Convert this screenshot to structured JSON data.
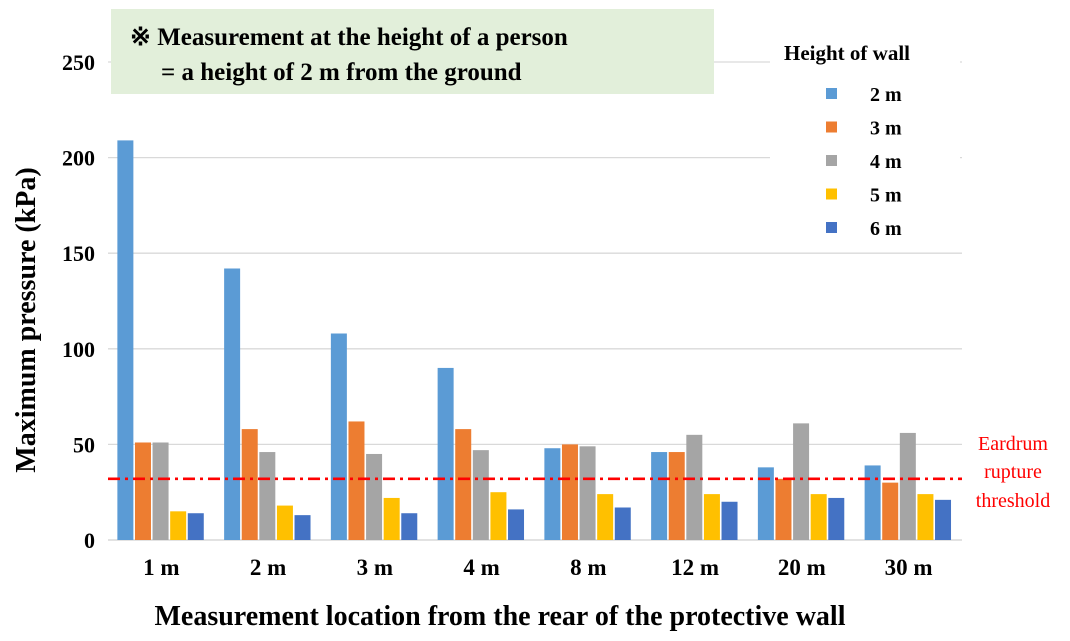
{
  "chart_data": {
    "type": "bar",
    "title": "",
    "xlabel": "Measurement location from the rear of the protective wall",
    "ylabel": "Maximum pressure (kPa)",
    "ylim": [
      0,
      250
    ],
    "yticks": [
      0,
      50,
      100,
      150,
      200,
      250
    ],
    "grid": true,
    "categories": [
      "1 m",
      "2 m",
      "3 m",
      "4 m",
      "8 m",
      "12 m",
      "20 m",
      "30 m"
    ],
    "legend_title": "Height of wall",
    "legend_position": "top-right",
    "series": [
      {
        "name": "2 m",
        "color": "#5b9bd5",
        "values": [
          209,
          142,
          108,
          90,
          48,
          46,
          38,
          39
        ]
      },
      {
        "name": "3 m",
        "color": "#ed7d31",
        "values": [
          51,
          58,
          62,
          58,
          50,
          46,
          32,
          30
        ]
      },
      {
        "name": "4 m",
        "color": "#a5a5a5",
        "values": [
          51,
          46,
          45,
          47,
          49,
          55,
          61,
          56
        ]
      },
      {
        "name": "5 m",
        "color": "#ffc000",
        "values": [
          15,
          18,
          22,
          25,
          24,
          24,
          24,
          24
        ]
      },
      {
        "name": "6 m",
        "color": "#4472c4",
        "values": [
          14,
          13,
          14,
          16,
          17,
          20,
          22,
          21
        ]
      }
    ],
    "threshold": {
      "value": 32,
      "color": "#ff0000",
      "label_lines": [
        "Eardrum",
        "rupture",
        "threshold"
      ]
    },
    "annotation": {
      "lines": [
        "※ Measurement at the height of a person",
        "= a height of 2 m from the ground"
      ],
      "background": "#e2efda"
    }
  }
}
